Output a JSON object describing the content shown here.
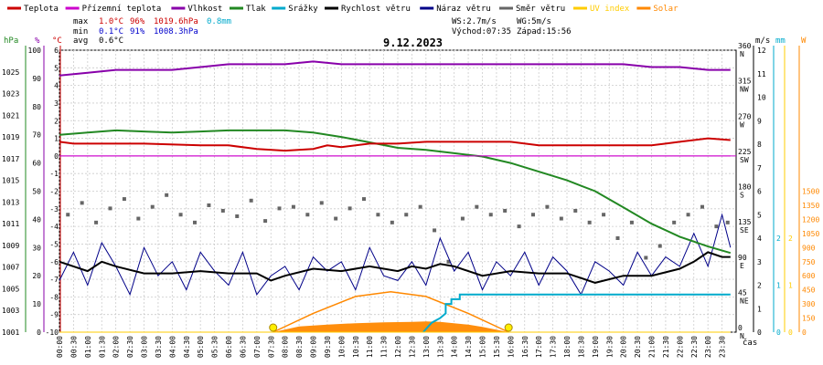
{
  "legend": [
    {
      "label": "Teplota",
      "color": "#cc0000"
    },
    {
      "label": "Přízemní teplota",
      "color": "#cc00cc"
    },
    {
      "label": "Vlhkost",
      "color": "#8800aa"
    },
    {
      "label": "Tlak",
      "color": "#228822"
    },
    {
      "label": "Srážky",
      "color": "#00aacc"
    },
    {
      "label": "Rychlost větru",
      "color": "#000000"
    },
    {
      "label": "Náraz větru",
      "color": "#000088"
    },
    {
      "label": "Směr větru",
      "color": "#666666"
    },
    {
      "label": "UV index",
      "color": "#ffcc00"
    },
    {
      "label": "Solar",
      "color": "#ff8800"
    }
  ],
  "stats": {
    "max": {
      "label": "max",
      "temp": "1.0°C",
      "hum": "96%",
      "press": "1019.6hPa",
      "rain": "0.8mm"
    },
    "min": {
      "label": "min",
      "temp": "0.1°C",
      "hum": "91%",
      "press": "1008.3hPa"
    },
    "avg": {
      "label": "avg",
      "temp": "0.6°C"
    }
  },
  "wind_info": {
    "ws": "WS:2.7m/s",
    "wg": "WG:5m/s",
    "sunrise": "Východ:07:35",
    "sunset": "Západ:15:56"
  },
  "date": "9.12.2023",
  "x_axis_unit": "čas",
  "chart_data": {
    "type": "line",
    "title": "9.12.2023",
    "x_ticks": [
      "00:00",
      "00:30",
      "01:00",
      "01:30",
      "02:00",
      "02:30",
      "03:00",
      "03:30",
      "04:00",
      "04:30",
      "05:00",
      "05:30",
      "06:00",
      "06:30",
      "07:00",
      "07:30",
      "08:00",
      "08:30",
      "09:00",
      "09:30",
      "10:00",
      "10:30",
      "11:00",
      "11:30",
      "12:00",
      "12:30",
      "13:00",
      "13:30",
      "14:00",
      "14:30",
      "15:00",
      "15:30",
      "16:00",
      "16:30",
      "17:00",
      "17:30",
      "18:00",
      "18:30",
      "19:00",
      "19:30",
      "20:00",
      "20:30",
      "21:00",
      "21:30",
      "22:00",
      "22:30",
      "23:00",
      "23:30"
    ],
    "axes": {
      "hpa": {
        "unit": "hPa",
        "color": "#228822",
        "range": [
          1001,
          1027
        ],
        "ticks": [
          "1001",
          "1003",
          "1005",
          "1007",
          "1009",
          "1011",
          "1013",
          "1015",
          "1017",
          "1019",
          "1021",
          "1023",
          "1025"
        ]
      },
      "pct": {
        "unit": "%",
        "color": "#8800aa",
        "range": [
          0,
          100
        ],
        "ticks": [
          "0",
          "10",
          "20",
          "30",
          "40",
          "50",
          "60",
          "70",
          "80",
          "90",
          "100"
        ]
      },
      "degc": {
        "unit": "°C",
        "color": "#cc0000",
        "range": [
          -10,
          6
        ],
        "ticks": [
          "-10",
          "-9",
          "-8",
          "-7",
          "-6",
          "-5",
          "-4",
          "-3",
          "-2",
          "-1",
          "0",
          "1",
          "2",
          "3",
          "4",
          "5",
          "6"
        ]
      },
      "direction": {
        "ticks": [
          {
            "deg": "0",
            "label": "N"
          },
          {
            "deg": "45",
            "label": "NE"
          },
          {
            "deg": "90",
            "label": "E"
          },
          {
            "deg": "135",
            "label": "SE"
          },
          {
            "deg": "180",
            "label": "S"
          },
          {
            "deg": "225",
            "label": "SW"
          },
          {
            "deg": "270",
            "label": "W"
          },
          {
            "deg": "315",
            "label": "NW"
          },
          {
            "deg": "360",
            "label": "N"
          }
        ]
      },
      "ms": {
        "unit": "m/s",
        "range": [
          0,
          12
        ],
        "ticks": [
          "0",
          "1",
          "2",
          "3",
          "4",
          "5",
          "6",
          "7",
          "8",
          "9",
          "10",
          "11",
          "12"
        ]
      },
      "mm": {
        "unit": "mm",
        "color": "#00aacc",
        "range": [
          0,
          2
        ],
        "ticks": [
          "0",
          "1",
          "2"
        ]
      },
      "uv": {
        "color": "#ffcc00",
        "range": [
          0,
          2
        ],
        "ticks": [
          "0",
          "1",
          "2"
        ]
      },
      "w": {
        "unit": "W",
        "color": "#ff8800",
        "range": [
          0,
          1500
        ],
        "ticks": [
          "0",
          "150",
          "300",
          "450",
          "600",
          "750",
          "900",
          "1050",
          "1200",
          "1350",
          "1500"
        ]
      }
    },
    "series": [
      {
        "name": "Teplota",
        "color": "#cc0000",
        "x": [
          0,
          0.5,
          1,
          3,
          5,
          6,
          7,
          8,
          9,
          9.5,
          10,
          11,
          12,
          13,
          14,
          15,
          16,
          17,
          18,
          19,
          20,
          21,
          21.5,
          22,
          23,
          23.8
        ],
        "y": [
          0.8,
          0.7,
          0.7,
          0.7,
          0.6,
          0.6,
          0.4,
          0.3,
          0.4,
          0.6,
          0.5,
          0.7,
          0.7,
          0.8,
          0.8,
          0.8,
          0.8,
          0.6,
          0.6,
          0.6,
          0.6,
          0.6,
          0.7,
          0.8,
          1.0,
          0.9
        ]
      },
      {
        "name": "Přízemní teplota",
        "color": "#cc00cc",
        "x": [
          0,
          23.8
        ],
        "y": [
          0,
          0
        ]
      },
      {
        "name": "Vlhkost",
        "color": "#8800aa",
        "x": [
          0,
          1,
          2,
          3,
          4,
          5,
          6,
          7,
          8,
          9,
          10,
          11,
          12,
          13,
          14,
          15,
          16,
          17,
          18,
          19,
          20,
          21,
          22,
          23,
          23.8
        ],
        "y": [
          91,
          92,
          93,
          93,
          93,
          94,
          95,
          95,
          95,
          96,
          95,
          95,
          95,
          95,
          95,
          95,
          95,
          95,
          95,
          95,
          95,
          94,
          94,
          93,
          93
        ]
      },
      {
        "name": "Tlak",
        "color": "#228822",
        "x": [
          0,
          1,
          2,
          3,
          4,
          5,
          6,
          7,
          8,
          9,
          10,
          11,
          12,
          13,
          14,
          15,
          16,
          17,
          18,
          19,
          20,
          21,
          22,
          23,
          23.8
        ],
        "y": [
          1019.2,
          1019.4,
          1019.6,
          1019.5,
          1019.4,
          1019.5,
          1019.6,
          1019.6,
          1019.6,
          1019.4,
          1019.0,
          1018.5,
          1018.0,
          1017.8,
          1017.5,
          1017.2,
          1016.6,
          1015.8,
          1015.0,
          1014.0,
          1012.5,
          1011.0,
          1009.8,
          1008.9,
          1008.3
        ]
      },
      {
        "name": "Srážky",
        "color": "#00aacc",
        "x": [
          12.9,
          13.2,
          13.5,
          13.7,
          13.7,
          13.9,
          13.9,
          14.2,
          14.2,
          23.8
        ],
        "y": [
          0,
          0.2,
          0.3,
          0.4,
          0.6,
          0.6,
          0.7,
          0.7,
          0.8,
          0.8
        ]
      },
      {
        "name": "Rychlost větru",
        "color": "#000000",
        "x": [
          0,
          1,
          1.5,
          2,
          3,
          4,
          5,
          6,
          7,
          7.5,
          8,
          9,
          10,
          11,
          12,
          12.5,
          13,
          13.5,
          14,
          15,
          16,
          17,
          18,
          19,
          20,
          21,
          22,
          22.5,
          23,
          23.5,
          23.8
        ],
        "y": [
          3.0,
          2.6,
          3.0,
          2.8,
          2.5,
          2.5,
          2.6,
          2.5,
          2.5,
          2.2,
          2.4,
          2.7,
          2.6,
          2.8,
          2.6,
          2.8,
          2.7,
          2.9,
          2.8,
          2.4,
          2.6,
          2.5,
          2.5,
          2.1,
          2.4,
          2.4,
          2.7,
          3.0,
          3.4,
          3.2,
          3.2
        ]
      },
      {
        "name": "Náraz větru",
        "color": "#000088",
        "x": [
          0,
          0.5,
          1,
          1.5,
          2,
          2.5,
          3,
          3.5,
          4,
          4.5,
          5,
          5.5,
          6,
          6.5,
          7,
          7.5,
          8,
          8.5,
          9,
          9.5,
          10,
          10.5,
          11,
          11.5,
          12,
          12.5,
          13,
          13.5,
          14,
          14.5,
          15,
          15.5,
          16,
          16.5,
          17,
          17.5,
          18,
          18.5,
          19,
          19.5,
          20,
          20.5,
          21,
          21.5,
          22,
          22.5,
          23,
          23.5,
          23.8
        ],
        "y": [
          2.2,
          3.4,
          2.0,
          3.8,
          2.8,
          1.6,
          3.6,
          2.4,
          3.0,
          1.8,
          3.4,
          2.6,
          2.0,
          3.4,
          1.6,
          2.4,
          2.8,
          1.8,
          3.2,
          2.6,
          3.0,
          1.8,
          3.6,
          2.4,
          2.2,
          3.0,
          2.0,
          4.0,
          2.6,
          3.4,
          1.8,
          3.0,
          2.4,
          3.4,
          2.0,
          3.2,
          2.6,
          1.6,
          3.0,
          2.6,
          2.0,
          3.4,
          2.4,
          3.2,
          2.8,
          4.2,
          2.8,
          5.0,
          3.6
        ]
      },
      {
        "name": "Směr větru",
        "color": "#666666",
        "x": [
          0.3,
          0.8,
          1.3,
          1.8,
          2.3,
          2.8,
          3.3,
          3.8,
          4.3,
          4.8,
          5.3,
          5.8,
          6.3,
          6.8,
          7.3,
          7.8,
          8.3,
          8.8,
          9.3,
          9.8,
          10.3,
          10.8,
          11.3,
          11.8,
          12.3,
          12.8,
          13.3,
          13.8,
          14.3,
          14.8,
          15.3,
          15.8,
          16.3,
          16.8,
          17.3,
          17.8,
          18.3,
          18.8,
          19.3,
          19.8,
          20.3,
          20.8,
          21.3,
          21.8,
          22.3,
          22.8,
          23.3,
          23.7
        ],
        "y": [
          150,
          165,
          140,
          158,
          170,
          145,
          160,
          175,
          150,
          140,
          162,
          155,
          148,
          168,
          142,
          158,
          160,
          150,
          165,
          145,
          158,
          170,
          150,
          140,
          150,
          160,
          130,
          90,
          145,
          160,
          150,
          155,
          135,
          150,
          160,
          145,
          155,
          140,
          150,
          120,
          140,
          95,
          110,
          140,
          150,
          160,
          135,
          140
        ]
      },
      {
        "name": "UV index",
        "color": "#ffcc00",
        "x": [
          0,
          23.8
        ],
        "y": [
          0,
          0
        ]
      },
      {
        "name": "Solar",
        "color": "#ff8800",
        "x": [
          7.58,
          8.5,
          9.5,
          10.5,
          11.5,
          12.5,
          13.0,
          13.5,
          14.5,
          15.0,
          15.93
        ],
        "y": [
          0,
          60,
          80,
          95,
          105,
          110,
          115,
          110,
          80,
          55,
          0
        ]
      }
    ],
    "solar_clear_sky": {
      "x": [
        7.58,
        9,
        10.5,
        11.75,
        13,
        14.5,
        15.93
      ],
      "y": [
        0,
        200,
        380,
        430,
        380,
        200,
        0
      ]
    },
    "sun_markers": [
      {
        "label": "Východ:07:35",
        "x": 7.58
      },
      {
        "label": "Západ:15:56",
        "x": 15.93
      }
    ],
    "grid": true,
    "legend_position": "top"
  }
}
